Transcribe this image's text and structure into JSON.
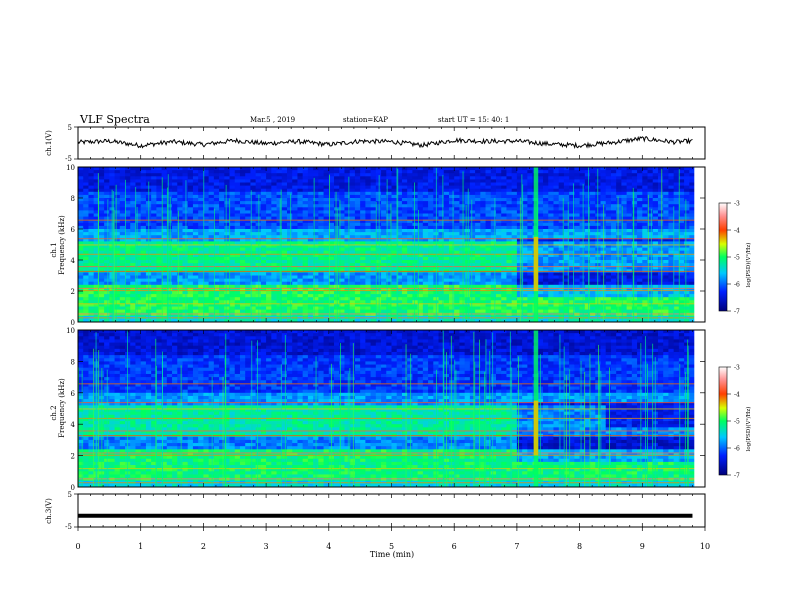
{
  "header": {
    "title": "VLF Spectra",
    "date": "Mar.5 , 2019",
    "station": "station=KAP",
    "start": "start UT = 15: 40: 1"
  },
  "colorbar": {
    "label": "log(PSD)(V²/Hz)",
    "ticks": [
      "-3",
      "-4",
      "-5",
      "-6",
      "-7"
    ]
  },
  "chart_data": [
    {
      "type": "line",
      "panel": "ch1-waveform",
      "ylabel": "ch.1(V)",
      "ylim": [
        -5,
        5
      ],
      "yticks": [
        "5",
        "-5"
      ],
      "x": [
        0,
        0.5,
        1.0,
        1.5,
        2.0,
        2.5,
        3.0,
        3.5,
        4.0,
        4.5,
        5.0,
        5.5,
        6.0,
        6.5,
        7.0,
        7.5,
        8.0,
        8.5,
        9.0,
        9.5,
        9.8
      ],
      "y": [
        0.2,
        0.6,
        -0.8,
        0.4,
        -0.5,
        0.8,
        -0.2,
        0.5,
        -0.5,
        0.6,
        0.4,
        -0.7,
        0.9,
        0.5,
        0.6,
        -0.3,
        -0.8,
        0.1,
        1.4,
        0.3,
        0.6
      ]
    },
    {
      "type": "heatmap",
      "panel": "ch1-spectrogram",
      "ylabel": "Frequency (kHz)",
      "channel_label": "ch.1",
      "ylim": [
        0,
        10
      ],
      "yticks": [
        "0",
        "2",
        "4",
        "6",
        "8",
        "10"
      ],
      "colorbar_range": [
        -7,
        -3
      ]
    },
    {
      "type": "heatmap",
      "panel": "ch2-spectrogram",
      "ylabel": "Frequency (kHz)",
      "channel_label": "ch.2",
      "ylim": [
        0,
        10
      ],
      "yticks": [
        "0",
        "2",
        "4",
        "6",
        "8",
        "10"
      ],
      "colorbar_range": [
        -7,
        -3
      ]
    },
    {
      "type": "line",
      "panel": "ch3-waveform",
      "ylabel": "ch.3(V)",
      "ylim": [
        -5,
        5
      ],
      "yticks": [
        "5",
        "-5"
      ],
      "x": [
        0,
        9.8
      ],
      "y": [
        -1.6,
        -1.6
      ]
    }
  ],
  "xaxis": {
    "label": "Time (min)",
    "ticks": [
      "0",
      "1",
      "2",
      "3",
      "4",
      "5",
      "6",
      "7",
      "8",
      "9",
      "10"
    ],
    "xlim": [
      0,
      10
    ]
  }
}
